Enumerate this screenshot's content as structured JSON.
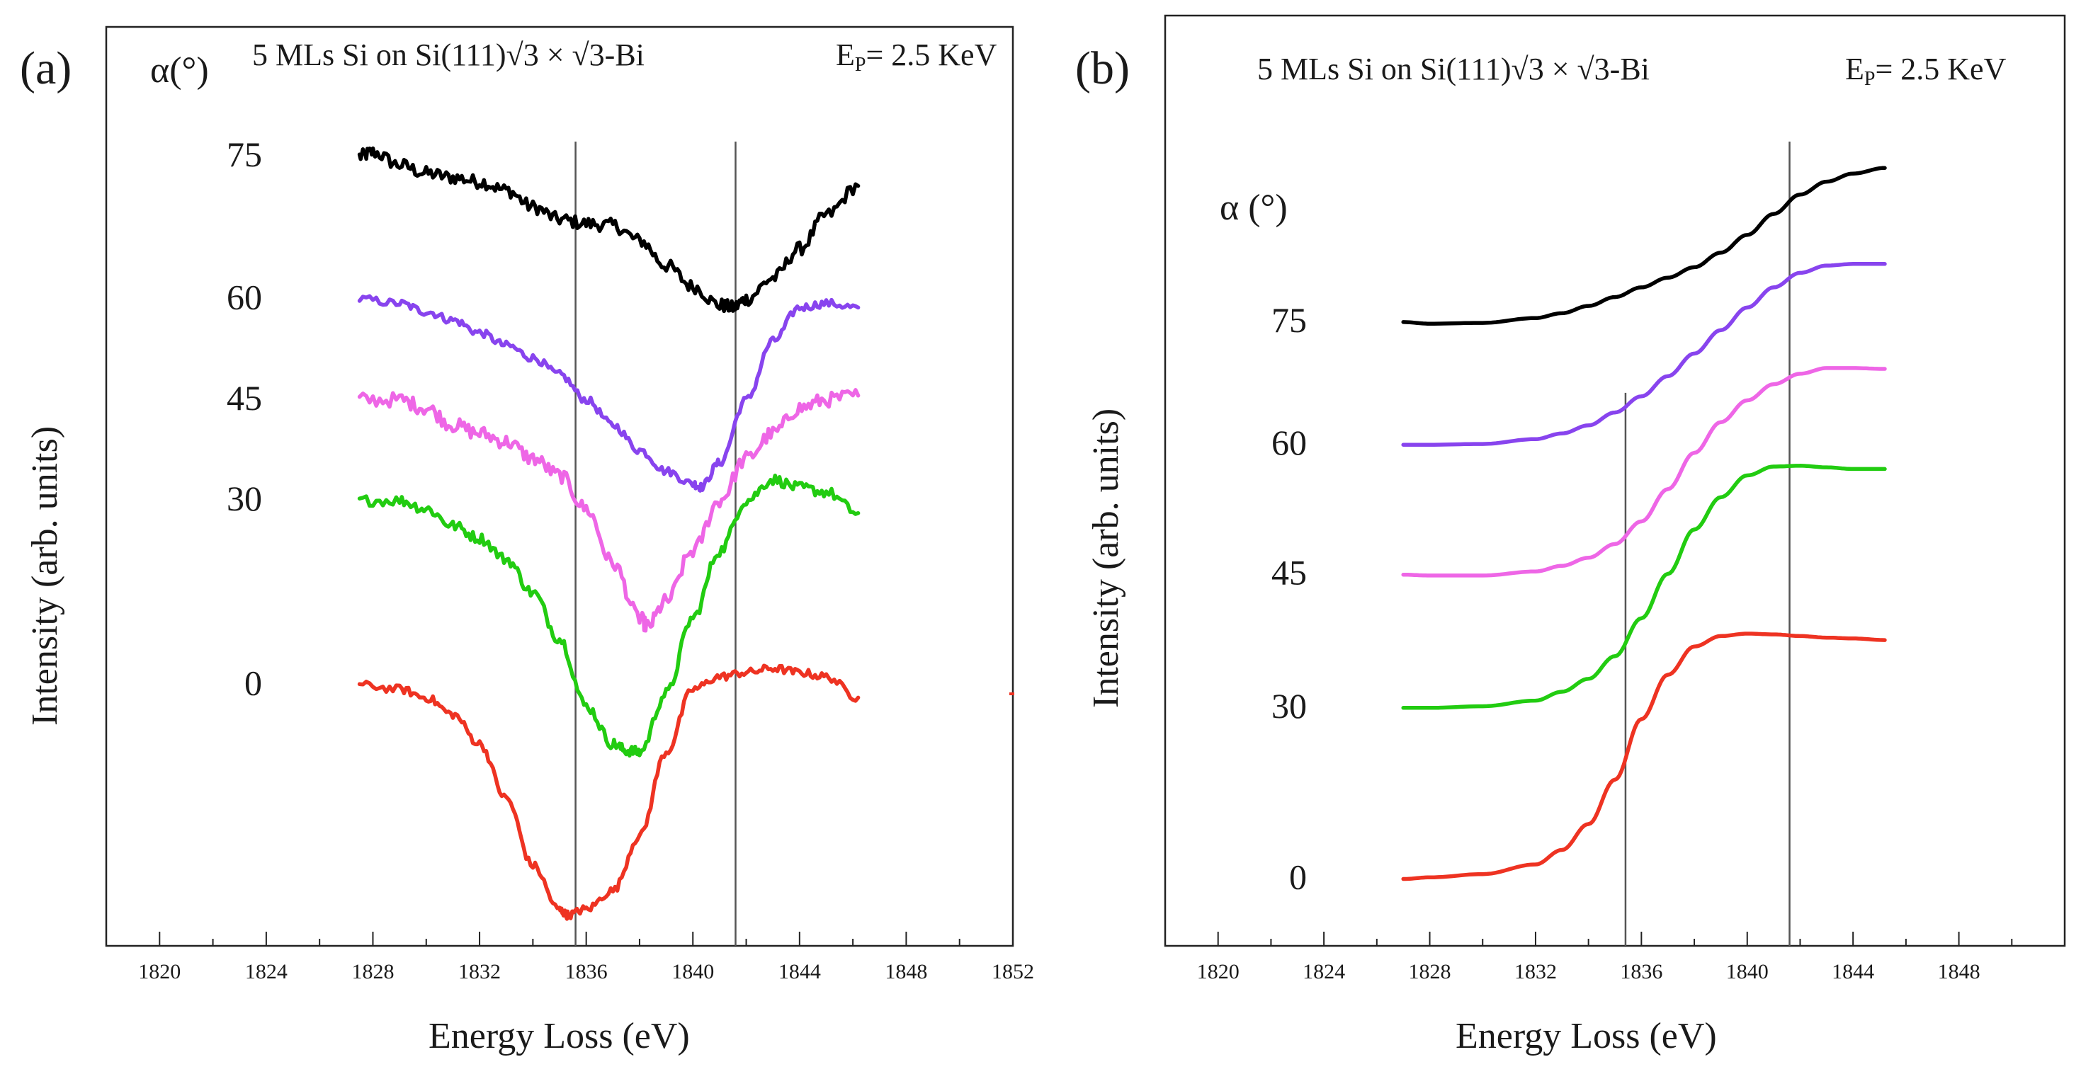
{
  "chart_data": [
    {
      "panel_label": "(a)",
      "type": "line",
      "title": "5 MLs Si on Si(111)√3 × √3-Bi",
      "energy_label": "E_P= 2.5 KeV",
      "energy_text": "E",
      "energy_sub": "P",
      "energy_value": "= 2.5 KeV",
      "alpha_header": "α(°)",
      "xlabel": "Energy Loss (eV)",
      "ylabel": "Intensity (arb. units)",
      "xlim": [
        1818,
        1852
      ],
      "ylim": [
        0,
        100
      ],
      "xticks": [
        1820,
        1824,
        1828,
        1832,
        1836,
        1840,
        1844,
        1848,
        1852
      ],
      "tick_labels": [
        "1820",
        "1824",
        "1828",
        "1832",
        "1836",
        "1840",
        "1844",
        "1848",
        "1852"
      ],
      "vlines": [
        1835.6,
        1841.6
      ],
      "series": [
        {
          "name": "75",
          "label": "75",
          "color": "#000000",
          "noise": 1.0,
          "x": [
            1827.5,
            1828,
            1829,
            1830,
            1831,
            1832,
            1833,
            1834,
            1835,
            1836,
            1837,
            1838,
            1839,
            1840,
            1841,
            1841.5,
            1842,
            1843,
            1844,
            1845,
            1846.2
          ],
          "y": [
            94.0,
            94.5,
            93.0,
            92.0,
            91.5,
            91.0,
            90.0,
            88.0,
            86.5,
            86.0,
            85.8,
            84.0,
            81.0,
            78.5,
            76.3,
            76.0,
            77.0,
            79.5,
            83.0,
            87.0,
            90.5
          ]
        },
        {
          "name": "60",
          "label": "60",
          "color": "#8844ee",
          "noise": 0.6,
          "x": [
            1827.5,
            1829,
            1830,
            1831,
            1832,
            1833,
            1834,
            1835,
            1836,
            1837,
            1838,
            1839,
            1840,
            1840.3,
            1841,
            1842,
            1843,
            1844,
            1845,
            1846.2
          ],
          "y": [
            77.0,
            76.5,
            75.5,
            74.5,
            73.0,
            71.5,
            70.0,
            68.0,
            65.0,
            62.0,
            59.0,
            56.5,
            55.0,
            54.6,
            57.5,
            65.0,
            72.0,
            76.0,
            76.5,
            76.0
          ]
        },
        {
          "name": "45",
          "label": "45",
          "color": "#ee66e6",
          "noise": 1.1,
          "x": [
            1827.5,
            1829,
            1830,
            1831,
            1832,
            1833,
            1834,
            1835,
            1836,
            1837,
            1838,
            1838.3,
            1839,
            1840,
            1841,
            1842,
            1843,
            1844,
            1845,
            1846.2
          ],
          "y": [
            65.0,
            65.0,
            64.0,
            62.0,
            61.0,
            60.0,
            58.0,
            56.0,
            52.0,
            45.5,
            39.0,
            38.0,
            41.0,
            47.0,
            53.0,
            58.0,
            61.0,
            64.0,
            65.0,
            65.5
          ]
        },
        {
          "name": "30",
          "label": "30",
          "color": "#22cc11",
          "noise": 0.8,
          "x": [
            1827.5,
            1829,
            1830,
            1831,
            1832,
            1833,
            1834,
            1835,
            1836,
            1837,
            1837.5,
            1838,
            1839,
            1840,
            1841,
            1842,
            1843,
            1844,
            1845,
            1846.2
          ],
          "y": [
            53.0,
            53.0,
            52.0,
            50.0,
            48.5,
            46.0,
            42.0,
            36.5,
            28.5,
            24.0,
            23.2,
            23.0,
            30.0,
            39.0,
            47.0,
            53.0,
            55.5,
            54.5,
            54.0,
            51.5
          ]
        },
        {
          "name": "0",
          "label": "0",
          "color": "#ee3322",
          "noise": 0.6,
          "x": [
            1827.5,
            1829,
            1830,
            1831,
            1832,
            1833,
            1834,
            1835,
            1835.3,
            1836,
            1837,
            1838,
            1839,
            1840,
            1841,
            1842,
            1843,
            1844,
            1845,
            1846.2
          ],
          "y": [
            31.0,
            30.5,
            29.5,
            27.5,
            24.0,
            17.5,
            9.5,
            4.2,
            3.6,
            4.3,
            6.5,
            13.0,
            23.0,
            30.5,
            32.0,
            32.5,
            33.0,
            32.5,
            32.0,
            29.5
          ]
        }
      ]
    },
    {
      "panel_label": "(b)",
      "type": "line",
      "title": "5 MLs Si on Si(111)√3 × √3-Bi",
      "energy_label": "E_P= 2.5 KeV",
      "energy_text": "E",
      "energy_sub": "P",
      "energy_value": "= 2.5 KeV",
      "alpha_header": "α (°)",
      "xlabel": "Energy Loss (eV)",
      "ylabel": "Intensity (arb. units)",
      "xlim": [
        1818,
        1852
      ],
      "ylim": [
        0,
        100
      ],
      "xticks": [
        1820,
        1824,
        1828,
        1832,
        1836,
        1840,
        1844,
        1848
      ],
      "tick_labels": [
        "1820",
        "1824",
        "1828",
        "1832",
        "1836",
        "1840",
        "1844",
        "1848"
      ],
      "vlines": [
        1835.4,
        1841.6
      ],
      "series": [
        {
          "name": "75",
          "label": "75",
          "color": "#000000",
          "noise": 0,
          "x": [
            1827,
            1828,
            1830,
            1832,
            1833,
            1834,
            1835,
            1836,
            1837,
            1838,
            1839,
            1840,
            1841,
            1842,
            1843,
            1844,
            1845.2
          ],
          "y": [
            77.2,
            77.0,
            77.1,
            77.7,
            78.3,
            79.2,
            80.3,
            81.5,
            82.7,
            84.0,
            85.8,
            88.0,
            90.6,
            93.0,
            94.6,
            95.6,
            96.3
          ]
        },
        {
          "name": "60",
          "label": "60",
          "color": "#8844ee",
          "noise": 0,
          "x": [
            1827,
            1828,
            1830,
            1832,
            1833,
            1834,
            1835,
            1836,
            1837,
            1838,
            1839,
            1840,
            1841,
            1842,
            1843,
            1844,
            1845.2
          ],
          "y": [
            62.0,
            62.0,
            62.1,
            62.7,
            63.4,
            64.4,
            66.0,
            68.0,
            70.5,
            73.3,
            76.2,
            79.0,
            81.5,
            83.3,
            84.2,
            84.4,
            84.4
          ]
        },
        {
          "name": "45",
          "label": "45",
          "color": "#ee66e6",
          "noise": 0,
          "x": [
            1827,
            1828,
            1830,
            1832,
            1833,
            1834,
            1835,
            1836,
            1837,
            1838,
            1839,
            1840,
            1841,
            1842,
            1843,
            1844,
            1845.2
          ],
          "y": [
            45.9,
            45.8,
            45.8,
            46.3,
            47.0,
            48.0,
            49.7,
            52.5,
            56.5,
            61.0,
            64.8,
            67.5,
            69.5,
            70.8,
            71.5,
            71.5,
            71.4
          ]
        },
        {
          "name": "30",
          "label": "30",
          "color": "#22cc11",
          "noise": 0,
          "x": [
            1827,
            1828,
            1830,
            1832,
            1833,
            1834,
            1835,
            1836,
            1837,
            1838,
            1839,
            1840,
            1841,
            1842,
            1843,
            1844,
            1845.2
          ],
          "y": [
            29.4,
            29.4,
            29.6,
            30.3,
            31.4,
            33.0,
            35.8,
            40.5,
            46.0,
            51.5,
            55.5,
            58.2,
            59.3,
            59.4,
            59.2,
            59.0,
            59.0
          ]
        },
        {
          "name": "0",
          "label": "0",
          "color": "#ee3322",
          "noise": 0,
          "x": [
            1827,
            1828,
            1830,
            1832,
            1833,
            1834,
            1835,
            1836,
            1837,
            1838,
            1839,
            1840,
            1841,
            1842,
            1843,
            1844,
            1845.2
          ],
          "y": [
            8.2,
            8.4,
            8.8,
            10.0,
            11.8,
            15.0,
            20.5,
            28.0,
            33.5,
            37.0,
            38.3,
            38.6,
            38.5,
            38.3,
            38.1,
            38.0,
            37.8
          ]
        }
      ]
    }
  ]
}
